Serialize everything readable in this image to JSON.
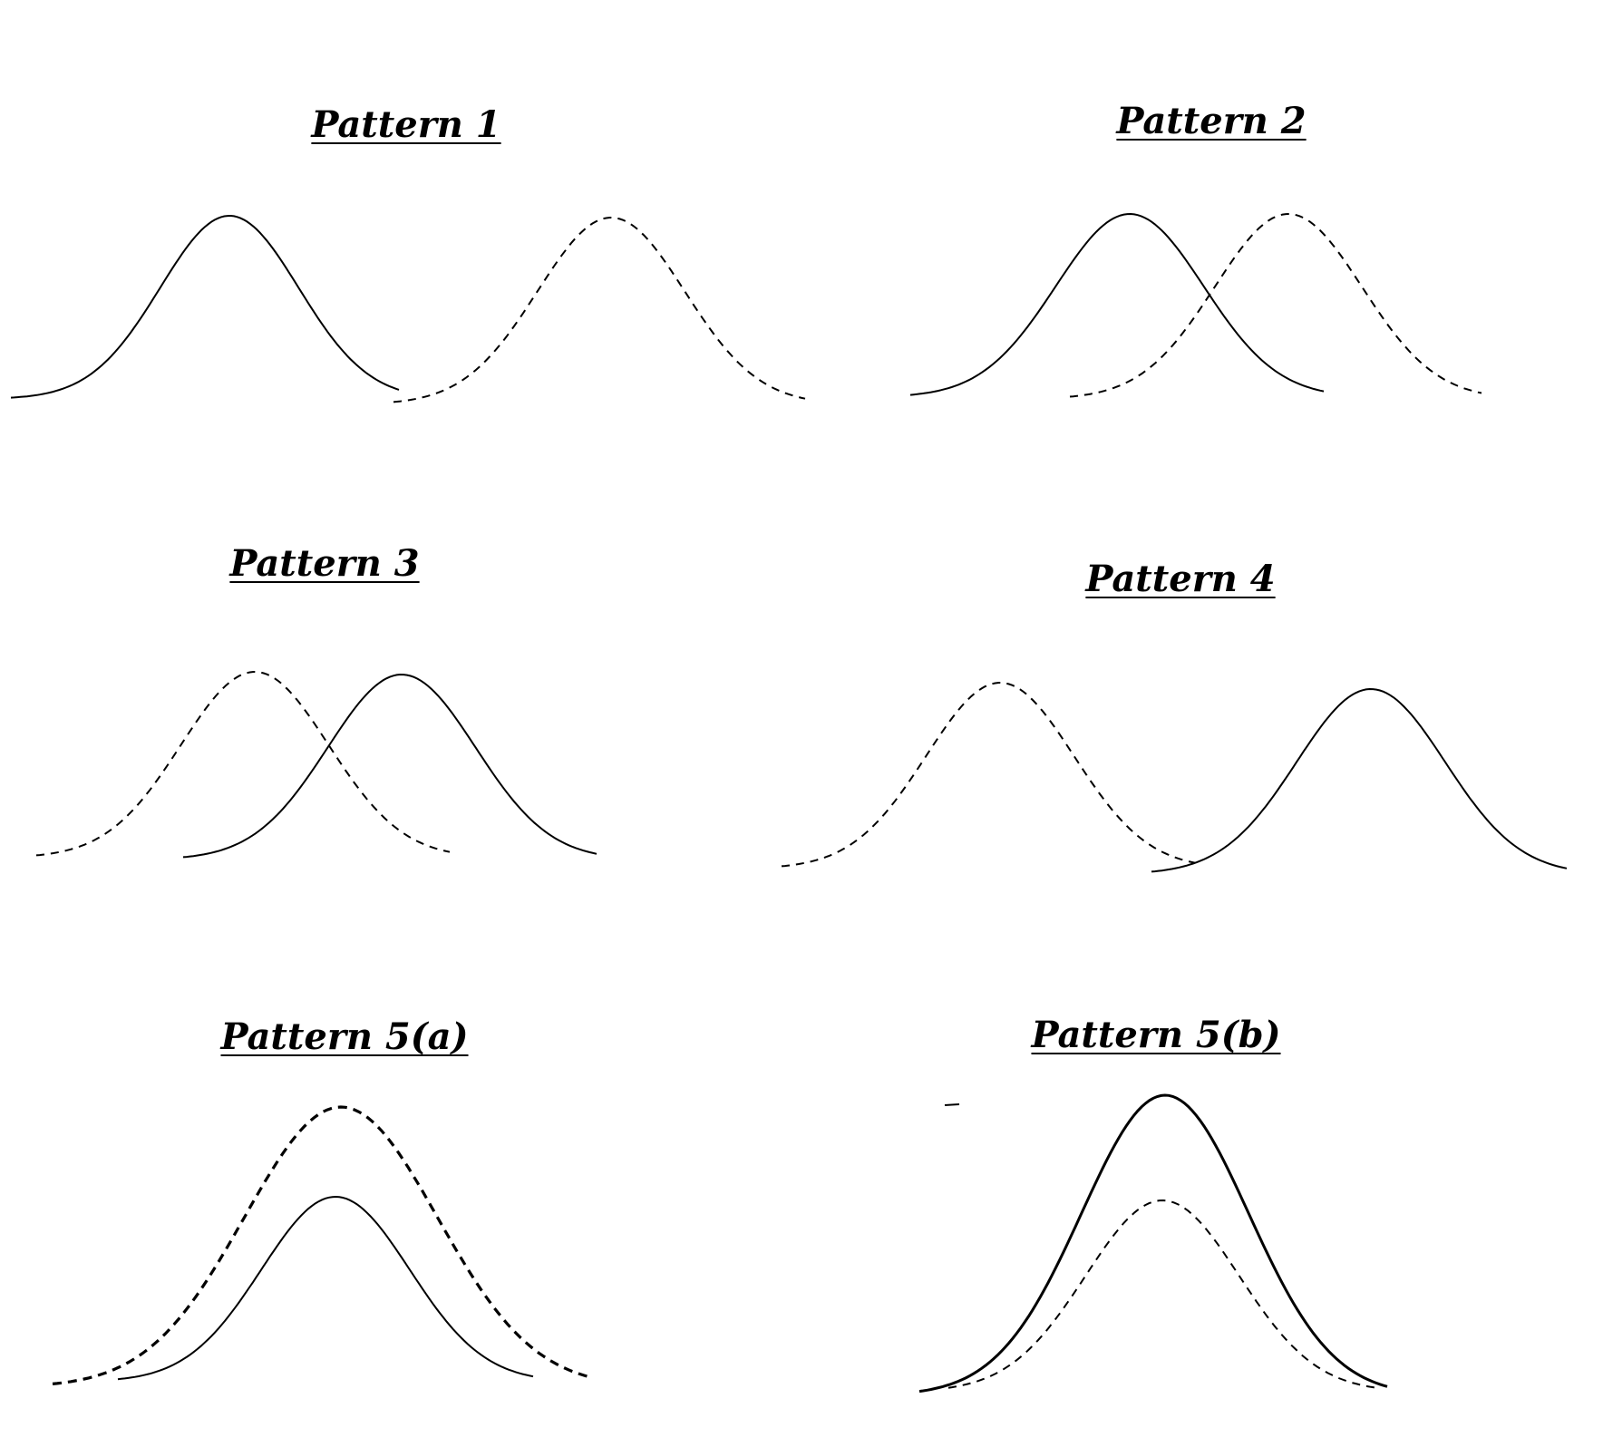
{
  "panels": [
    {
      "id": "p1",
      "title": "Pattern 1"
    },
    {
      "id": "p2",
      "title": "Pattern 2"
    },
    {
      "id": "p3",
      "title": "Pattern 3"
    },
    {
      "id": "p4",
      "title": "Pattern 4"
    },
    {
      "id": "p5a",
      "title": "Pattern 5(a)"
    },
    {
      "id": "p5b",
      "title": "Pattern 5(b)"
    }
  ],
  "colors": {
    "line": "#000000",
    "background": "#ffffff"
  }
}
